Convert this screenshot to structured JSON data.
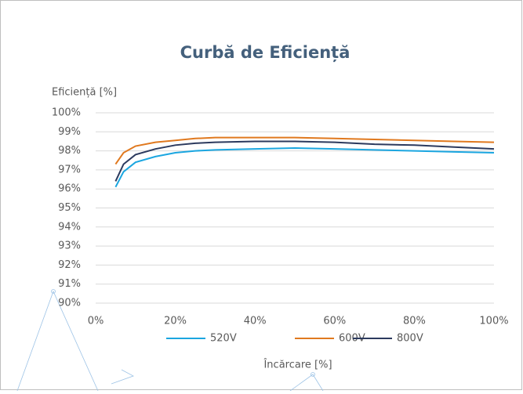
{
  "chart_data": {
    "type": "line",
    "title": "Curbă de Eficiență",
    "y_label": "Eficiență [%]",
    "x_label": "Încărcare [%]",
    "x": [
      5,
      7,
      10,
      15,
      20,
      25,
      30,
      40,
      50,
      60,
      70,
      80,
      90,
      100
    ],
    "series": [
      {
        "name": "520V",
        "color": "#1ba6e0",
        "values": [
          96.1,
          96.9,
          97.4,
          97.7,
          97.9,
          98.0,
          98.05,
          98.1,
          98.15,
          98.1,
          98.05,
          98.0,
          97.95,
          97.9
        ]
      },
      {
        "name": "600V",
        "color": "#e0791f",
        "values": [
          97.3,
          97.9,
          98.25,
          98.45,
          98.55,
          98.65,
          98.7,
          98.7,
          98.7,
          98.65,
          98.6,
          98.55,
          98.5,
          98.45
        ]
      },
      {
        "name": "800V",
        "color": "#2c3a5e",
        "values": [
          96.4,
          97.3,
          97.8,
          98.1,
          98.3,
          98.4,
          98.45,
          98.5,
          98.5,
          98.45,
          98.35,
          98.3,
          98.2,
          98.1
        ]
      }
    ],
    "xlim": [
      0,
      100
    ],
    "xticks": [
      {
        "value": 0,
        "label": "0%"
      },
      {
        "value": 20,
        "label": "20%"
      },
      {
        "value": 40,
        "label": "40%"
      },
      {
        "value": 60,
        "label": "60%"
      },
      {
        "value": 80,
        "label": "80%"
      },
      {
        "value": 100,
        "label": "100%"
      }
    ],
    "ylim": [
      90,
      100
    ],
    "yticks": [
      {
        "value": 90,
        "label": "90%"
      },
      {
        "value": 91,
        "label": "91%"
      },
      {
        "value": 92,
        "label": "92%"
      },
      {
        "value": 93,
        "label": "93%"
      },
      {
        "value": 94,
        "label": "94%"
      },
      {
        "value": 95,
        "label": "95%"
      },
      {
        "value": 96,
        "label": "96%"
      },
      {
        "value": 97,
        "label": "97%"
      },
      {
        "value": 98,
        "label": "98%"
      },
      {
        "value": 99,
        "label": "99%"
      },
      {
        "value": 100,
        "label": "100%"
      }
    ],
    "grid": true,
    "legend": "bottom"
  }
}
